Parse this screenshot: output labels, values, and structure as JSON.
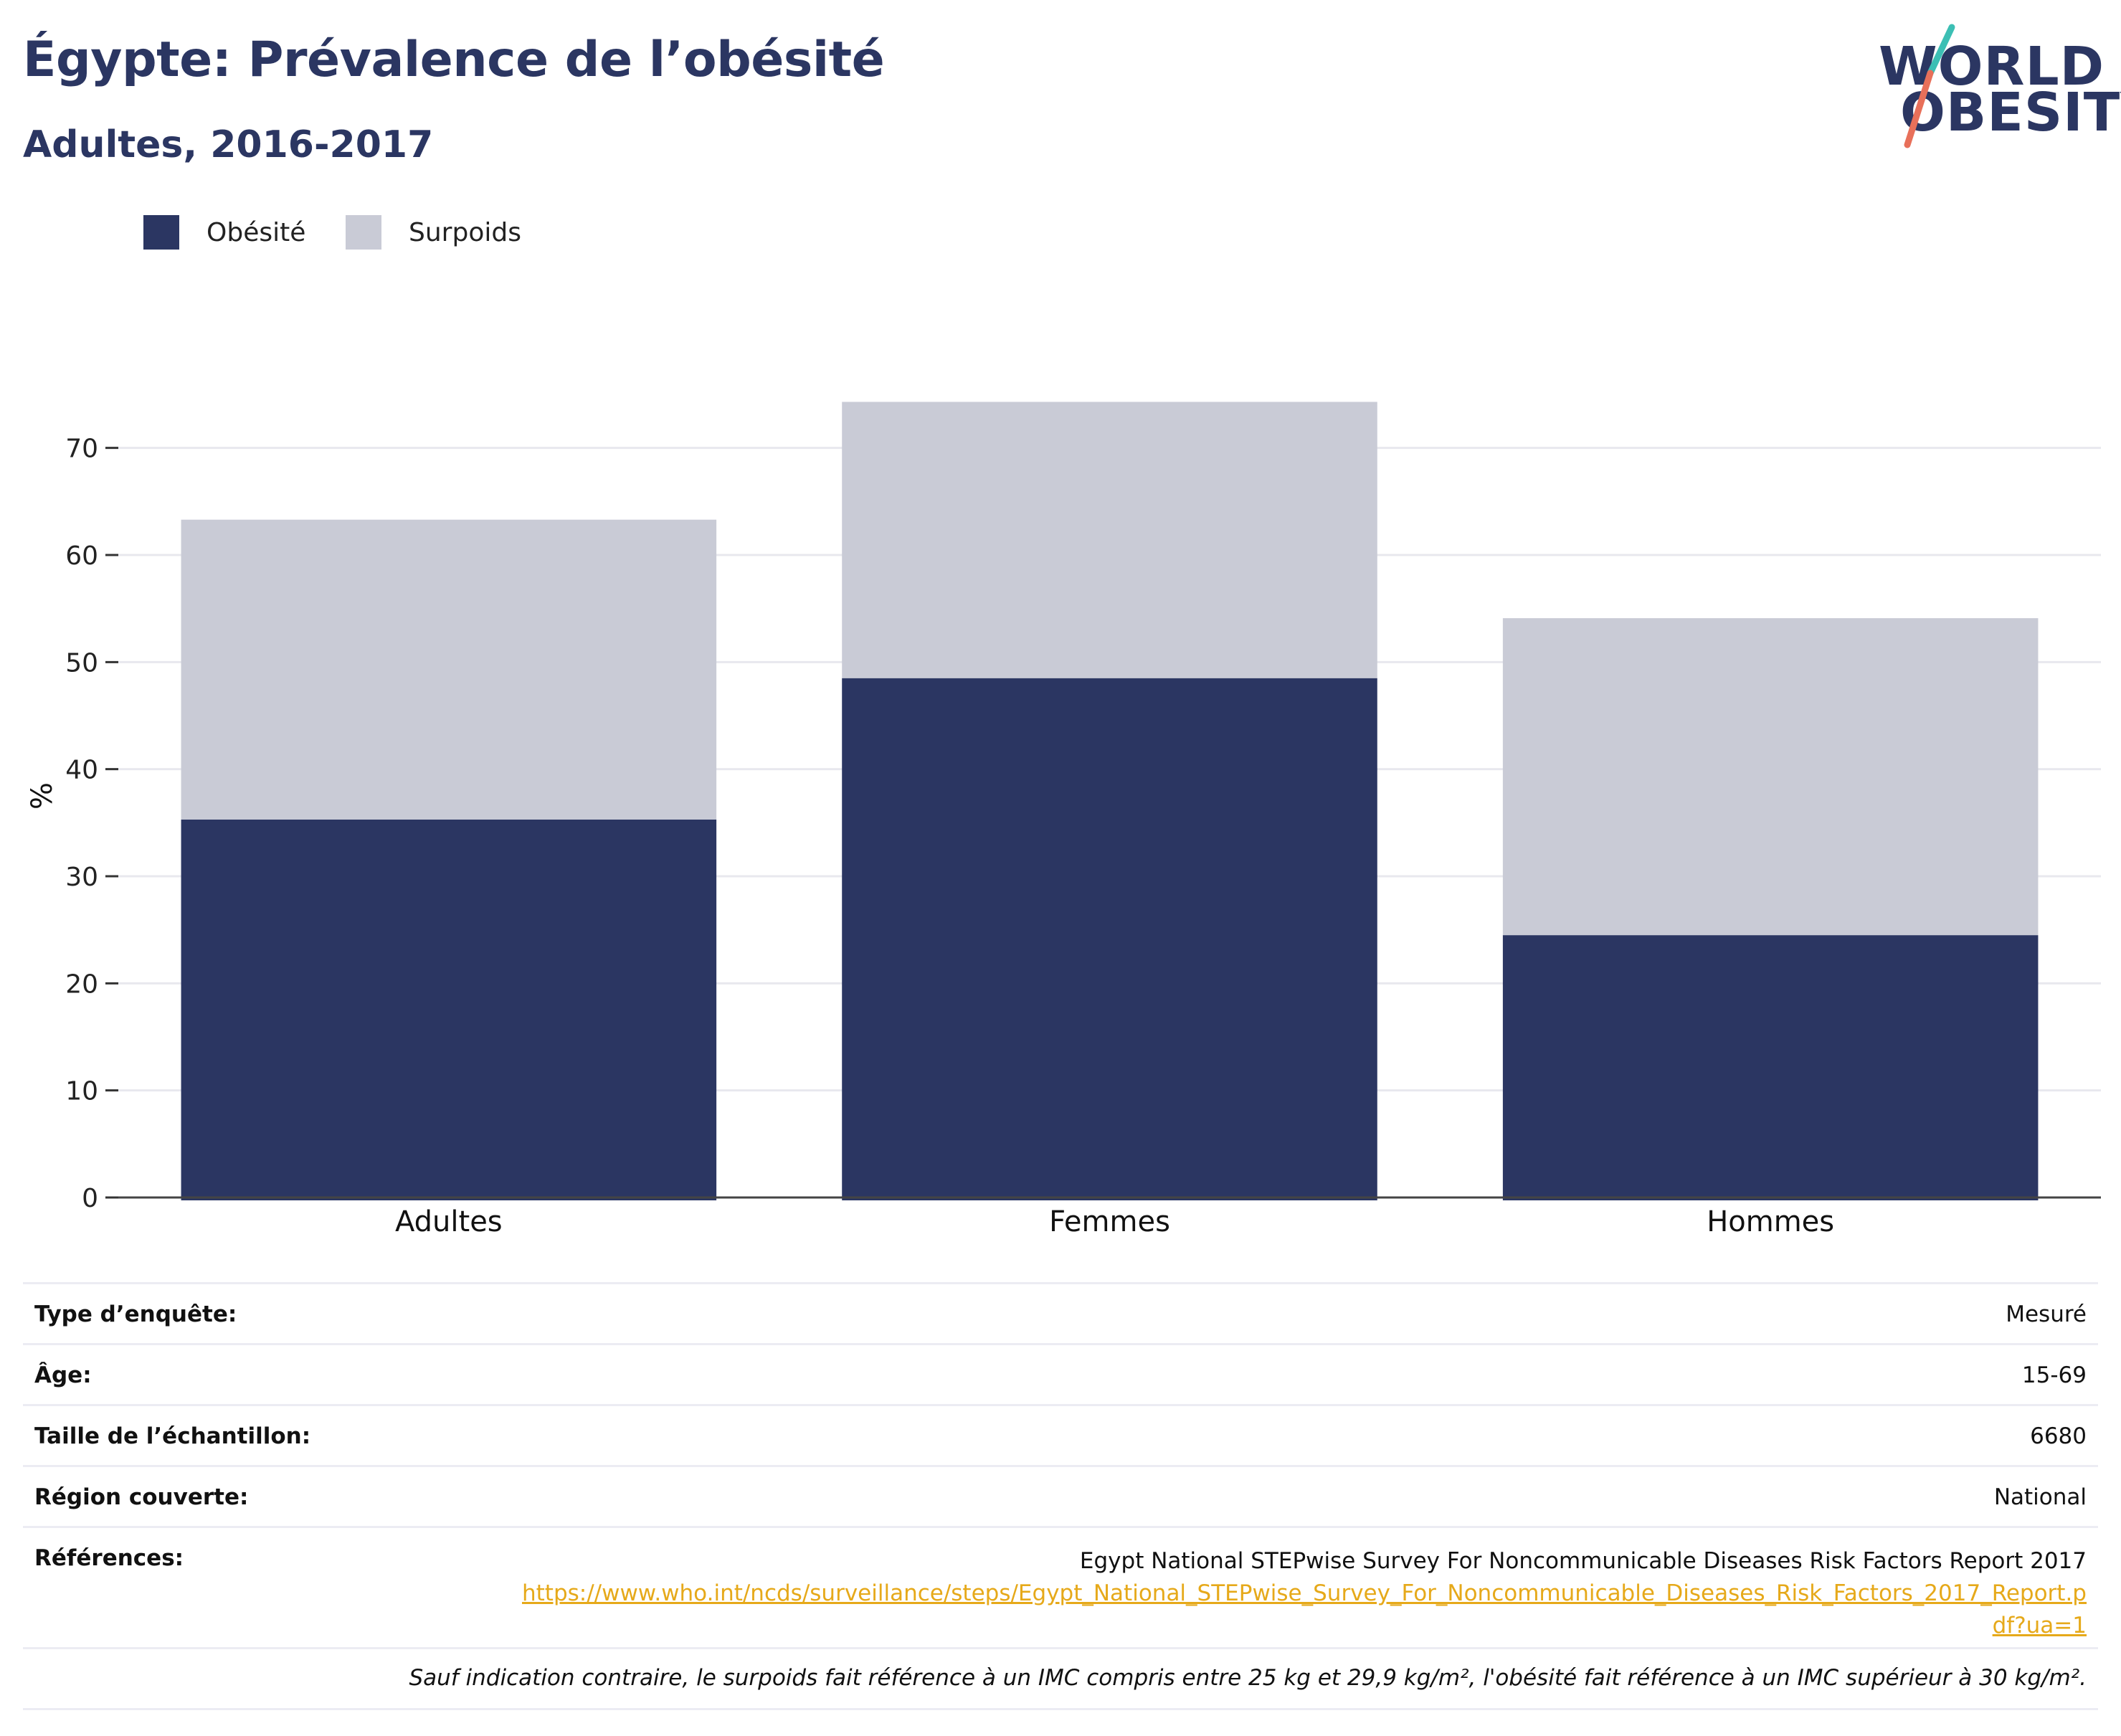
{
  "header": {
    "title": "Égypte: Prévalence de l’obésité",
    "subtitle": "Adultes, 2016-2017"
  },
  "logo": {
    "line1": "WORLD",
    "line2": "OBESITY"
  },
  "colors": {
    "obesity": "#2b3662",
    "overweight": "#c9cbd6",
    "brand": "#2b3662",
    "link": "#e6a91a",
    "logo_teal": "#3cbfb4",
    "logo_coral": "#e8705a"
  },
  "legend": [
    {
      "label": "Obésité",
      "color": "#2b3662"
    },
    {
      "label": "Surpoids",
      "color": "#c9cbd6"
    }
  ],
  "chart_data": {
    "type": "bar",
    "stacked": true,
    "categories": [
      "Adultes",
      "Femmes",
      "Hommes"
    ],
    "series": [
      {
        "name": "Obésité",
        "values": [
          35.3,
          48.5,
          24.5
        ]
      },
      {
        "name": "Surpoids",
        "values": [
          28.0,
          25.8,
          29.6
        ]
      }
    ],
    "title": "Égypte: Prévalence de l’obésité",
    "subtitle": "Adultes, 2016-2017",
    "xlabel": "",
    "ylabel": "%",
    "ylim": [
      0,
      75
    ],
    "yticks": [
      0,
      10,
      20,
      30,
      40,
      50,
      60,
      70
    ],
    "grid": true,
    "legend_position": "top-left"
  },
  "info": {
    "survey_type": {
      "label": "Type d’enquête:",
      "value": "Mesuré"
    },
    "age": {
      "label": "Âge:",
      "value": "15-69"
    },
    "sample_size": {
      "label": "Taille de l’échantillon:",
      "value": "6680"
    },
    "region": {
      "label": "Région couverte:",
      "value": "National"
    },
    "references": {
      "label": "Références:",
      "text": "Egypt National STEPwise Survey For Noncommunicable Diseases Risk Factors Report 2017",
      "url": "https://www.who.int/ncds/surveillance/steps/Egypt_National_STEPwise_Survey_For_Noncommunicable_Diseases_Risk_Factors_2017_Report.pdf?ua=1"
    },
    "note": "Sauf indication contraire, le surpoids fait référence à un IMC compris entre 25 kg et 29,9 kg/m², l'obésité fait référence à un IMC supérieur à 30 kg/m²."
  }
}
